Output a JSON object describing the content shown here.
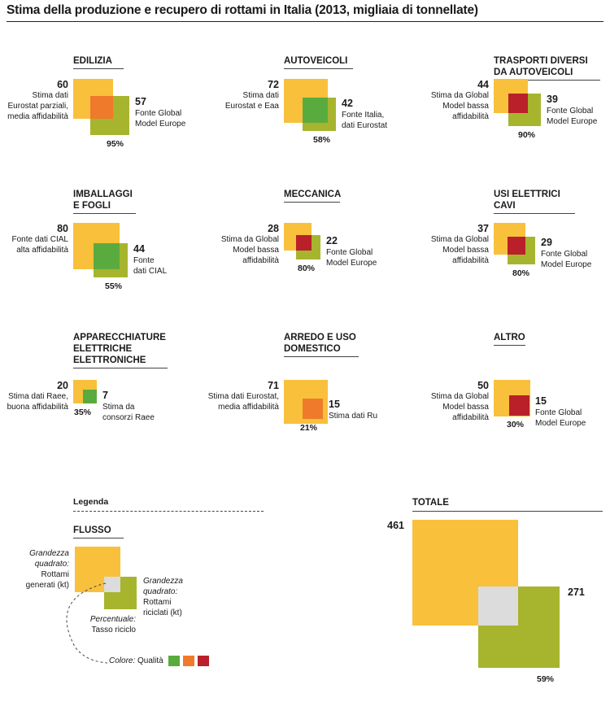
{
  "title": "Stima della produzione e recupero di rottami in Italia (2013, migliaia di tonnellate)",
  "chart_data": {
    "type": "proportional-squares",
    "title": "Stima della produzione e recupero di rottami in Italia (2013, migliaia di tonnellate)",
    "quality_colors": {
      "buona": "#5aab3e",
      "media": "#ef7a2b",
      "bassa": "#b9202a",
      "n/d": "#dcdcdc"
    },
    "generated_color": "#f9c03c",
    "recycled_color": "#a6b52d",
    "categories": [
      {
        "id": "edilizia",
        "name": "EDILIZIA",
        "generated": 60,
        "generated_note": "Stima dati\nEurostat parziali,\nmedia affidabilità",
        "recycled": 57,
        "recycled_note": "Fonte Global\nModel Europe",
        "rate": "95%",
        "quality_color": "#ef7a2b"
      },
      {
        "id": "autoveicoli",
        "name": "AUTOVEICOLI",
        "generated": 72,
        "generated_note": "Stima dati\nEurostat e Eaa",
        "recycled": 42,
        "recycled_note": "Fonte Italia,\ndati Eurostat",
        "rate": "58%",
        "quality_color": "#5aab3e"
      },
      {
        "id": "trasporti",
        "name": "TRASPORTI DIVERSI\nDA AUTOVEICOLI",
        "generated": 44,
        "generated_note": "Stima da Global\nModel bassa\naffidabilità",
        "recycled": 39,
        "recycled_note": "Fonte Global\nModel Europe",
        "rate": "90%",
        "quality_color": "#b9202a"
      },
      {
        "id": "imballaggi",
        "name": "IMBALLAGGI\nE FOGLI",
        "generated": 80,
        "generated_note": "Fonte dati CIAL\nalta affidabilità",
        "recycled": 44,
        "recycled_note": "Fonte\ndati CIAL",
        "rate": "55%",
        "quality_color": "#5aab3e"
      },
      {
        "id": "meccanica",
        "name": "MECCANICA",
        "generated": 28,
        "generated_note": "Stima da Global\nModel bassa\naffidabilità",
        "recycled": 22,
        "recycled_note": "Fonte Global\nModel Europe",
        "rate": "80%",
        "quality_color": "#b9202a"
      },
      {
        "id": "usi-elettrici",
        "name": "USI ELETTRICI\nCAVI",
        "generated": 37,
        "generated_note": "Stima da Global\nModel bassa\naffidabilità",
        "recycled": 29,
        "recycled_note": "Fonte Global\nModel Europe",
        "rate": "80%",
        "quality_color": "#b9202a"
      },
      {
        "id": "apparecchiature",
        "name": "APPARECCHIATURE\nELETTRICHE\nELETTRONICHE",
        "generated": 20,
        "generated_note": "Stima dati Raee,\nbuona affidabilità",
        "recycled": 7,
        "recycled_note": "Stima da\nconsorzi Raee",
        "rate": "35%",
        "quality_color": "#5aab3e"
      },
      {
        "id": "arredo",
        "name": "ARREDO E USO\nDOMESTICO",
        "generated": 71,
        "generated_note": "Stima dati Eurostat,\nmedia affidabilità",
        "recycled": 15,
        "recycled_note": "Stima dati Ru",
        "rate": "21%",
        "quality_color": "#ef7a2b"
      },
      {
        "id": "altro",
        "name": "ALTRO",
        "generated": 50,
        "generated_note": "Stima da Global\nModel bassa\naffidabilità",
        "recycled": 15,
        "recycled_note": "Fonte Global\nModel Europe",
        "rate": "30%",
        "quality_color": "#b9202a"
      }
    ],
    "total": {
      "name": "TOTALE",
      "generated": 461,
      "recycled": 271,
      "rate": "59%",
      "quality_color": "#dcdcdc"
    }
  },
  "legend": {
    "heading": "Legenda",
    "flow_label": "FLUSSO",
    "size_generated_italic": "Grandezza\nquadrato:",
    "size_generated_text": "Rottami\ngenerati (kt)",
    "size_recycled_italic": "Grandezza\nquadrato:",
    "size_recycled_text": "Rottami\nriciclati (kt)",
    "percent_italic": "Percentuale:",
    "percent_text": "Tasso riciclo",
    "color_italic": "Colore:",
    "color_text": "Qualità",
    "swatches": [
      "#5aab3e",
      "#ef7a2b",
      "#b9202a"
    ]
  }
}
